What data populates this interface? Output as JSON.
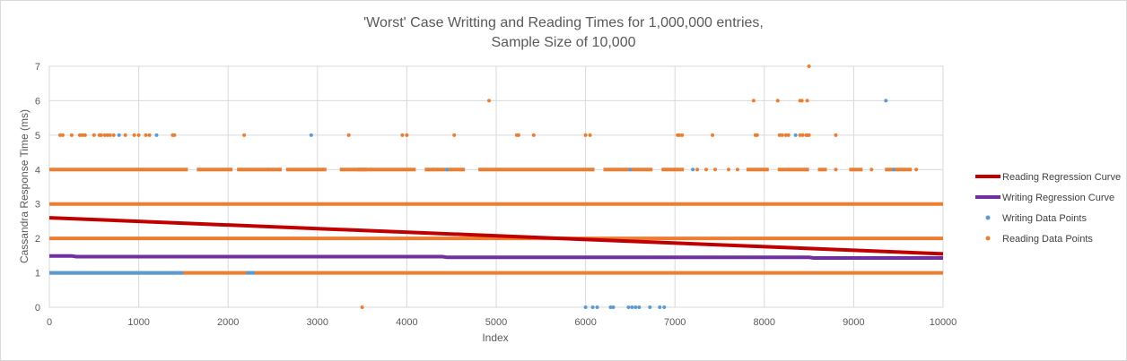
{
  "chart_data": {
    "type": "scatter",
    "title_line1": "'Worst' Case Writting and Reading Times for 1,000,000 entries,",
    "title_line2": "Sample Size of 10,000",
    "xlabel": "Index",
    "ylabel": "Cassandra Response Time (ms)",
    "xlim": [
      0,
      10000
    ],
    "ylim": [
      0,
      7
    ],
    "x_ticks": [
      0,
      1000,
      2000,
      3000,
      4000,
      5000,
      6000,
      7000,
      8000,
      9000,
      10000
    ],
    "y_ticks": [
      0,
      1,
      2,
      3,
      4,
      5,
      6,
      7
    ],
    "grid": true,
    "legend_position": "right",
    "colors": {
      "reading_regression": "#c00000",
      "writing_regression": "#7030a0",
      "writing_points": "#5b9bd5",
      "reading_points": "#ed7d31",
      "grid": "#d9d9d9",
      "text": "#595959"
    },
    "series": [
      {
        "name": "Reading Regression Curve",
        "kind": "line",
        "x": [
          0,
          10000
        ],
        "y": [
          2.6,
          1.55
        ]
      },
      {
        "name": "Writing Regression Curve",
        "kind": "line",
        "x": [
          0,
          250,
          300,
          4400,
          4450,
          8500,
          8550,
          10000
        ],
        "y": [
          1.49,
          1.49,
          1.47,
          1.47,
          1.45,
          1.45,
          1.43,
          1.43
        ]
      },
      {
        "name": "Writing Data Points",
        "kind": "points",
        "bands": [
          {
            "y": 1,
            "x_ranges": [
              [
                0,
                1500
              ],
              [
                2200,
                2300
              ]
            ]
          }
        ],
        "x": [
          6000,
          6080,
          6130,
          6280,
          6310,
          6480,
          6520,
          6560,
          6600,
          6720,
          6830,
          6880,
          780,
          1200,
          2930,
          4450,
          6500,
          7200,
          8350,
          9360,
          9450
        ],
        "y": [
          0,
          0,
          0,
          0,
          0,
          0,
          0,
          0,
          0,
          0,
          0,
          0,
          5,
          5,
          5,
          4,
          4,
          4,
          5,
          6,
          4
        ]
      },
      {
        "name": "Reading Data Points",
        "kind": "points",
        "bands": [
          {
            "y": 1,
            "x_ranges": [
              [
                0,
                10000
              ]
            ]
          },
          {
            "y": 2,
            "x_ranges": [
              [
                0,
                10000
              ]
            ]
          },
          {
            "y": 3,
            "x_ranges": [
              [
                0,
                10000
              ]
            ]
          },
          {
            "y": 4,
            "x_ranges": [
              [
                0,
                1550
              ],
              [
                1650,
                2050
              ],
              [
                2100,
                2600
              ],
              [
                2650,
                3100
              ],
              [
                3250,
                3550
              ],
              [
                3450,
                4100
              ],
              [
                4200,
                4650
              ],
              [
                4800,
                6100
              ],
              [
                6200,
                6750
              ],
              [
                6850,
                7100
              ],
              [
                7800,
                8050
              ],
              [
                8150,
                8500
              ],
              [
                8600,
                8700
              ],
              [
                8950,
                9100
              ],
              [
                9350,
                9650
              ]
            ]
          }
        ],
        "x": [
          120,
          150,
          250,
          340,
          370,
          400,
          500,
          560,
          580,
          620,
          650,
          680,
          720,
          850,
          950,
          1000,
          1080,
          1120,
          1380,
          1400,
          2180,
          3350,
          3950,
          4000,
          4530,
          5230,
          5250,
          5420,
          6000,
          6050,
          7030,
          7050,
          7080,
          7420,
          7900,
          7920,
          8170,
          8200,
          8240,
          8270,
          8400,
          8430,
          8470,
          8480,
          8500,
          8800,
          4920,
          7880,
          8150,
          8400,
          8420,
          8480,
          8500,
          3500,
          2450,
          3600,
          4300,
          7250,
          7350,
          7450,
          7600,
          7700,
          8800,
          9200,
          9700
        ],
        "y": [
          5,
          5,
          5,
          5,
          5,
          5,
          5,
          5,
          5,
          5,
          5,
          5,
          5,
          5,
          5,
          5,
          5,
          5,
          5,
          5,
          5,
          5,
          5,
          5,
          5,
          5,
          5,
          5,
          5,
          5,
          5,
          5,
          5,
          5,
          5,
          5,
          5,
          5,
          5,
          5,
          5,
          5,
          5,
          5,
          5,
          5,
          6,
          6,
          6,
          6,
          6,
          6,
          7,
          0,
          4,
          4,
          4,
          4,
          4,
          4,
          4,
          4,
          4,
          4,
          4
        ]
      }
    ]
  }
}
